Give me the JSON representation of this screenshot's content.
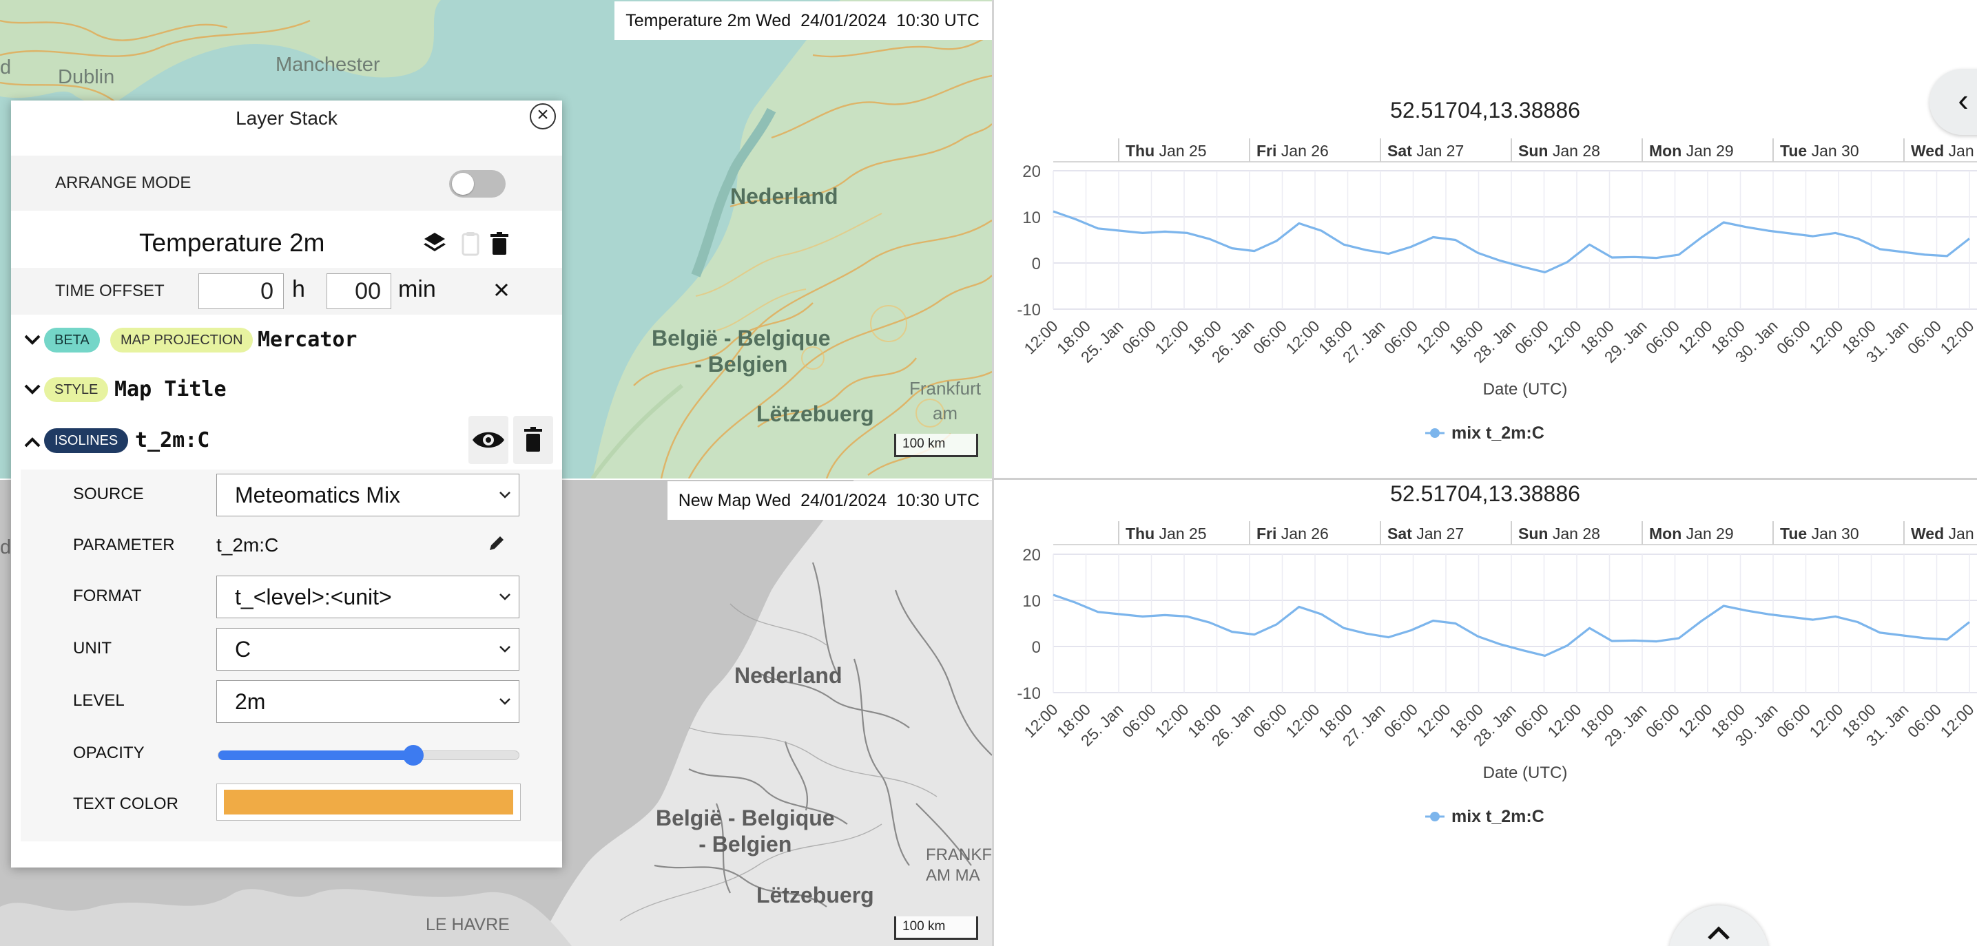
{
  "map_top": {
    "title": "Temperature 2m Wed  24/01/2024  10:30 UTC",
    "scale_label": "100 km",
    "places": {
      "manchester": "Manchester",
      "dublin": "Dublin",
      "nederland": "Nederland",
      "belgie": "België - Belgique\n- Belgien",
      "letzebuerg": "Lëtzebuerg",
      "frankfurt": "Frankfurt am",
      "edge_d": "d"
    }
  },
  "map_bottom": {
    "title": "New Map Wed  24/01/2024  10:30 UTC",
    "scale_label": "100 km",
    "places": {
      "nederland": "Nederland",
      "belgie": "België - Belgique\n- Belgien",
      "letzebuerg": "Lëtzebuerg",
      "frankfurt": "FRANKF\nAM MA",
      "le_havre": "LE HAVRE",
      "edge_d": "d"
    }
  },
  "layer_stack": {
    "title": "Layer Stack",
    "close_icon": "close-icon",
    "arrange_mode_label": "ARRANGE MODE",
    "arrange_mode_on": false,
    "layer_name": "Temperature 2m",
    "time_offset": {
      "label": "TIME OFFSET",
      "hours": "0",
      "hours_unit": "h",
      "minutes": "00",
      "minutes_unit": "min"
    },
    "sections": [
      {
        "tags": [
          "BETA",
          "MAP PROJECTION"
        ],
        "value": "Mercator",
        "expanded": false
      },
      {
        "tags": [
          "STYLE"
        ],
        "value": "Map Title",
        "expanded": false
      },
      {
        "tags": [
          "ISOLINES"
        ],
        "value": "t_2m:C",
        "expanded": true
      }
    ],
    "isolines": {
      "source_label": "SOURCE",
      "source_value": "Meteomatics Mix",
      "parameter_label": "PARAMETER",
      "parameter_value": "t_2m:C",
      "format_label": "FORMAT",
      "format_value": "t_<level>:<unit>",
      "unit_label": "UNIT",
      "unit_value": "C",
      "level_label": "LEVEL",
      "level_value": "2m",
      "opacity_label": "OPACITY",
      "opacity_value": 0.65,
      "text_color_label": "TEXT COLOR",
      "text_color_value": "#f0ab45"
    }
  },
  "colors": {
    "series": "#7cb5ec",
    "accent": "#3d7bf0"
  },
  "chart_data": [
    {
      "type": "line",
      "title": "52.51704,13.38886",
      "xlabel": "Date (UTC)",
      "ylabel": "",
      "ylim": [
        -10,
        20
      ],
      "yticks": [
        "20",
        "10",
        "0",
        "-10"
      ],
      "day_headers": [
        {
          "bold": "Thu",
          "text": "Jan 25"
        },
        {
          "bold": "Fri",
          "text": "Jan 26"
        },
        {
          "bold": "Sat",
          "text": "Jan 27"
        },
        {
          "bold": "Sun",
          "text": "Jan 28"
        },
        {
          "bold": "Mon",
          "text": "Jan 29"
        },
        {
          "bold": "Tue",
          "text": "Jan 30"
        },
        {
          "bold": "Wed",
          "text": "Jan"
        }
      ],
      "xticks": [
        "12:00",
        "18:00",
        "25. Jan",
        "06:00",
        "12:00",
        "18:00",
        "26. Jan",
        "06:00",
        "12:00",
        "18:00",
        "27. Jan",
        "06:00",
        "12:00",
        "18:00",
        "28. Jan",
        "06:00",
        "12:00",
        "18:00",
        "29. Jan",
        "06:00",
        "12:00",
        "18:00",
        "30. Jan",
        "06:00",
        "12:00",
        "18:00",
        "31. Jan",
        "06:00",
        "12:00"
      ],
      "series": [
        {
          "name": "mix t_2m:C",
          "values": [
            11.2,
            9.5,
            7.5,
            7.0,
            6.5,
            6.8,
            6.5,
            5.2,
            3.2,
            2.6,
            4.8,
            8.6,
            7.0,
            4.0,
            2.8,
            2.0,
            3.5,
            5.6,
            5.0,
            2.2,
            0.5,
            -0.8,
            -2.0,
            0.2,
            4.0,
            1.2,
            1.3,
            1.1,
            1.8,
            5.5,
            8.8,
            7.8,
            7.0,
            6.4,
            5.8,
            6.5,
            5.3,
            3.0,
            2.4,
            1.8,
            1.5,
            5.3
          ]
        }
      ]
    },
    {
      "type": "line",
      "title": "52.51704,13.38886",
      "xlabel": "Date (UTC)",
      "ylabel": "",
      "ylim": [
        -10,
        20
      ],
      "yticks": [
        "20",
        "10",
        "0",
        "-10"
      ],
      "day_headers": [
        {
          "bold": "Thu",
          "text": "Jan 25"
        },
        {
          "bold": "Fri",
          "text": "Jan 26"
        },
        {
          "bold": "Sat",
          "text": "Jan 27"
        },
        {
          "bold": "Sun",
          "text": "Jan 28"
        },
        {
          "bold": "Mon",
          "text": "Jan 29"
        },
        {
          "bold": "Tue",
          "text": "Jan 30"
        },
        {
          "bold": "Wed",
          "text": "Jan"
        }
      ],
      "xticks": [
        "12:00",
        "18:00",
        "25. Jan",
        "06:00",
        "12:00",
        "18:00",
        "26. Jan",
        "06:00",
        "12:00",
        "18:00",
        "27. Jan",
        "06:00",
        "12:00",
        "18:00",
        "28. Jan",
        "06:00",
        "12:00",
        "18:00",
        "29. Jan",
        "06:00",
        "12:00",
        "18:00",
        "30. Jan",
        "06:00",
        "12:00",
        "18:00",
        "31. Jan",
        "06:00",
        "12:00"
      ],
      "series": [
        {
          "name": "mix t_2m:C",
          "values": [
            11.2,
            9.5,
            7.5,
            7.0,
            6.5,
            6.8,
            6.5,
            5.2,
            3.2,
            2.6,
            4.8,
            8.6,
            7.0,
            4.0,
            2.8,
            2.0,
            3.5,
            5.6,
            5.0,
            2.2,
            0.5,
            -0.8,
            -2.0,
            0.2,
            4.0,
            1.2,
            1.3,
            1.1,
            1.8,
            5.5,
            8.8,
            7.8,
            7.0,
            6.4,
            5.8,
            6.5,
            5.3,
            3.0,
            2.4,
            1.8,
            1.5,
            5.3
          ]
        }
      ]
    }
  ]
}
